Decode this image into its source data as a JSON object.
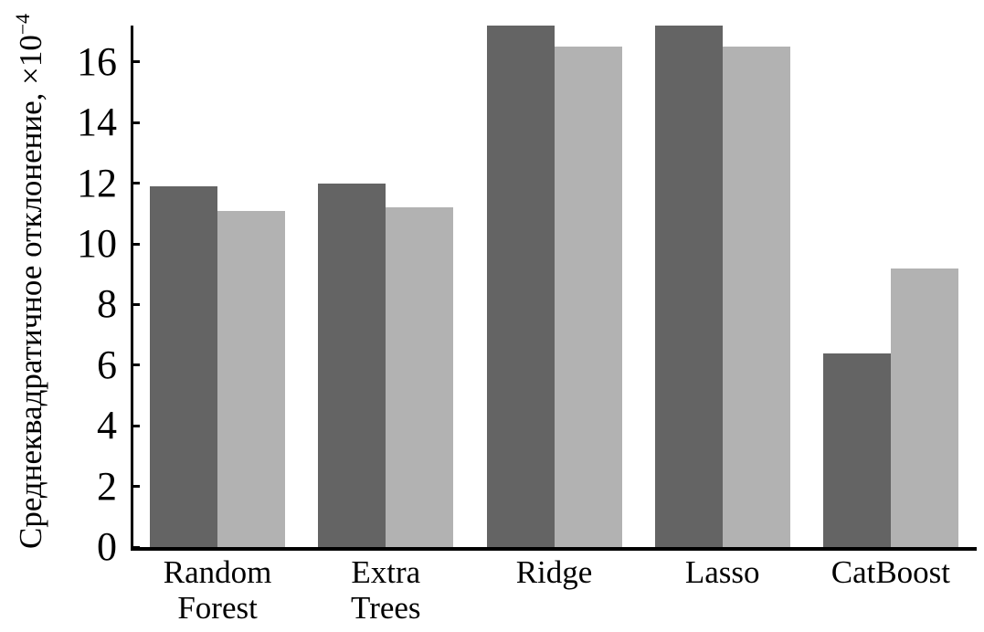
{
  "chart_data": {
    "type": "bar",
    "title": "",
    "xlabel": "",
    "ylabel": "Среднеквадратичное отклонение, ×10⁻⁴",
    "ylabel_prefix": "Среднеквадратичное отклонение, ×10",
    "ylabel_exponent": "−4",
    "categories": [
      "Random Forest",
      "Extra Trees",
      "Ridge",
      "Lasso",
      "CatBoost"
    ],
    "category_label_lines": [
      [
        "Random",
        "Forest"
      ],
      [
        "Extra",
        "Trees"
      ],
      [
        "Ridge"
      ],
      [
        "Lasso"
      ],
      [
        "CatBoost"
      ]
    ],
    "series": [
      {
        "name": "dark",
        "color": "#646464",
        "values": [
          11.9,
          12.0,
          17.2,
          17.2,
          6.4
        ]
      },
      {
        "name": "light",
        "color": "#b2b2b2",
        "values": [
          11.1,
          11.2,
          16.5,
          16.5,
          9.2
        ]
      }
    ],
    "yticks": [
      0,
      2,
      4,
      6,
      8,
      10,
      12,
      14,
      16
    ],
    "ylim": [
      0,
      17.2
    ],
    "grid": false,
    "legend": "none",
    "axis_color": "#000000",
    "background_color": "#ffffff"
  }
}
